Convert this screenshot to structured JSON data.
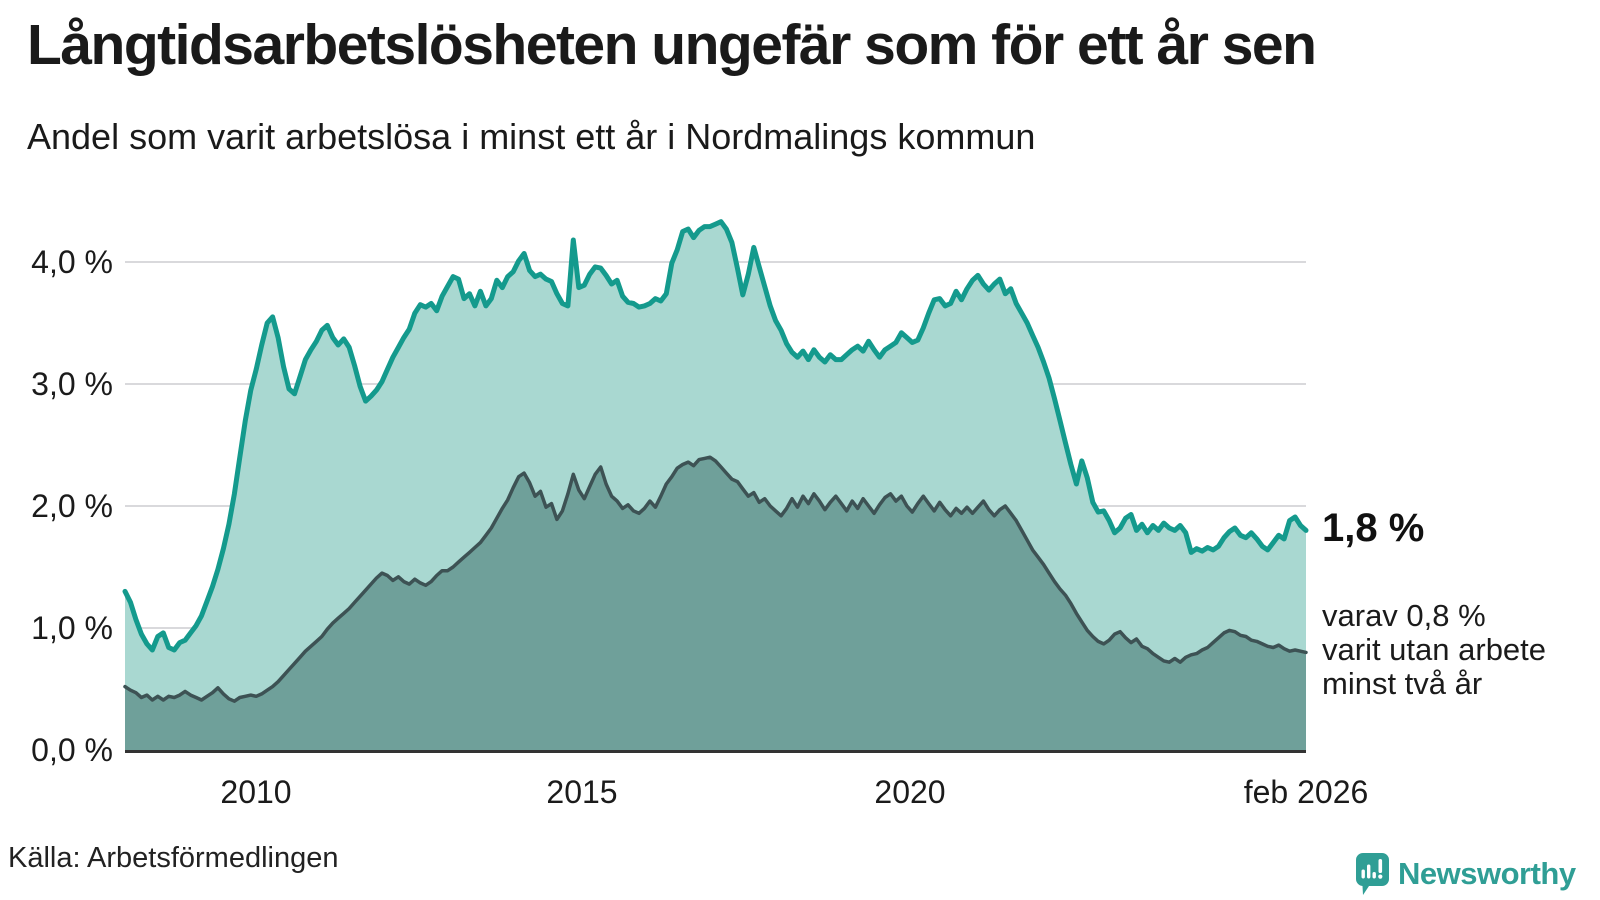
{
  "header": {
    "title": "Långtidsarbetslösheten ungefär som för ett år sen",
    "subtitle": "Andel som varit arbetslösa i minst ett år i Nordmalings kommun"
  },
  "chart_data": {
    "type": "area",
    "title": "Långtidsarbetslösheten ungefär som för ett år sen",
    "subtitle": "Andel som varit arbetslösa i minst ett år i Nordmalings kommun",
    "unit": "%",
    "freq": "monthly",
    "x_start_decimal_year": 2008.083,
    "x_end_decimal_year": 2026.083,
    "ylim": [
      0,
      4.35
    ],
    "grid": "horizontal",
    "y_ticks": [
      {
        "label": "4,0 %",
        "value": 4.0
      },
      {
        "label": "3,0 %",
        "value": 3.0
      },
      {
        "label": "2,0 %",
        "value": 2.0
      },
      {
        "label": "1,0 %",
        "value": 1.0
      },
      {
        "label": "0,0 %",
        "value": 0.0
      }
    ],
    "x_ticks": [
      {
        "label": "2010",
        "time": 2010.0
      },
      {
        "label": "2015",
        "time": 2015.0
      },
      {
        "label": "2020",
        "time": 2020.0
      },
      {
        "label": "feb 2026",
        "time": 2026.083
      }
    ],
    "series": [
      {
        "name": "Andel arbetslösa minst ett år",
        "line_color": "#149a8d",
        "fill_color": "#a9d8d1",
        "line_width": 5,
        "values": [
          1.3,
          1.21,
          1.07,
          0.95,
          0.87,
          0.82,
          0.93,
          0.96,
          0.84,
          0.82,
          0.88,
          0.9,
          0.96,
          1.02,
          1.1,
          1.22,
          1.34,
          1.48,
          1.65,
          1.85,
          2.1,
          2.4,
          2.7,
          2.95,
          3.12,
          3.32,
          3.5,
          3.55,
          3.38,
          3.14,
          2.96,
          2.92,
          3.06,
          3.2,
          3.28,
          3.35,
          3.44,
          3.48,
          3.38,
          3.32,
          3.37,
          3.3,
          3.15,
          2.98,
          2.86,
          2.9,
          2.95,
          3.02,
          3.12,
          3.22,
          3.3,
          3.38,
          3.45,
          3.58,
          3.65,
          3.63,
          3.66,
          3.6,
          3.72,
          3.8,
          3.88,
          3.86,
          3.7,
          3.74,
          3.64,
          3.76,
          3.64,
          3.7,
          3.85,
          3.79,
          3.88,
          3.92,
          4.01,
          4.07,
          3.93,
          3.88,
          3.9,
          3.86,
          3.84,
          3.74,
          3.66,
          3.64,
          4.18,
          3.79,
          3.81,
          3.9,
          3.96,
          3.95,
          3.89,
          3.82,
          3.85,
          3.72,
          3.67,
          3.66,
          3.63,
          3.64,
          3.66,
          3.7,
          3.68,
          3.74,
          3.99,
          4.1,
          4.25,
          4.27,
          4.2,
          4.26,
          4.29,
          4.29,
          4.31,
          4.33,
          4.27,
          4.16,
          3.95,
          3.73,
          3.9,
          4.12,
          3.96,
          3.8,
          3.64,
          3.52,
          3.44,
          3.33,
          3.26,
          3.22,
          3.27,
          3.2,
          3.28,
          3.22,
          3.18,
          3.24,
          3.2,
          3.2,
          3.24,
          3.28,
          3.31,
          3.27,
          3.35,
          3.28,
          3.22,
          3.28,
          3.31,
          3.34,
          3.42,
          3.38,
          3.34,
          3.36,
          3.46,
          3.58,
          3.69,
          3.7,
          3.64,
          3.66,
          3.76,
          3.69,
          3.78,
          3.85,
          3.89,
          3.82,
          3.77,
          3.82,
          3.86,
          3.74,
          3.78,
          3.66,
          3.58,
          3.5,
          3.4,
          3.3,
          3.18,
          3.05,
          2.88,
          2.7,
          2.52,
          2.34,
          2.18,
          2.37,
          2.23,
          2.03,
          1.95,
          1.96,
          1.88,
          1.78,
          1.82,
          1.9,
          1.93,
          1.8,
          1.85,
          1.78,
          1.84,
          1.8,
          1.86,
          1.82,
          1.8,
          1.84,
          1.78,
          1.62,
          1.65,
          1.63,
          1.66,
          1.64,
          1.67,
          1.74,
          1.79,
          1.82,
          1.76,
          1.74,
          1.78,
          1.73,
          1.67,
          1.64,
          1.7,
          1.76,
          1.73,
          1.88,
          1.91,
          1.84,
          1.8
        ]
      },
      {
        "name": "Varav utan arbete minst två år",
        "line_color": "#3d5254",
        "fill_color": "#6fa09a",
        "line_width": 3.5,
        "values": [
          0.52,
          0.49,
          0.47,
          0.43,
          0.45,
          0.41,
          0.44,
          0.41,
          0.44,
          0.43,
          0.45,
          0.48,
          0.45,
          0.43,
          0.41,
          0.44,
          0.47,
          0.51,
          0.46,
          0.42,
          0.4,
          0.43,
          0.44,
          0.45,
          0.44,
          0.46,
          0.49,
          0.52,
          0.56,
          0.61,
          0.66,
          0.71,
          0.76,
          0.81,
          0.85,
          0.89,
          0.93,
          0.99,
          1.04,
          1.08,
          1.12,
          1.16,
          1.21,
          1.26,
          1.31,
          1.36,
          1.41,
          1.45,
          1.43,
          1.39,
          1.42,
          1.38,
          1.36,
          1.4,
          1.37,
          1.35,
          1.38,
          1.43,
          1.47,
          1.47,
          1.5,
          1.54,
          1.58,
          1.62,
          1.66,
          1.7,
          1.76,
          1.82,
          1.9,
          1.98,
          2.05,
          2.15,
          2.24,
          2.27,
          2.19,
          2.08,
          2.12,
          1.99,
          2.02,
          1.89,
          1.96,
          2.1,
          2.26,
          2.13,
          2.06,
          2.16,
          2.26,
          2.32,
          2.18,
          2.08,
          2.04,
          1.98,
          2.01,
          1.96,
          1.94,
          1.98,
          2.04,
          1.99,
          2.08,
          2.18,
          2.24,
          2.31,
          2.34,
          2.36,
          2.33,
          2.38,
          2.39,
          2.4,
          2.37,
          2.32,
          2.27,
          2.22,
          2.2,
          2.14,
          2.08,
          2.11,
          2.03,
          2.06,
          2.0,
          1.96,
          1.92,
          1.98,
          2.06,
          1.99,
          2.08,
          2.02,
          2.1,
          2.04,
          1.97,
          2.03,
          2.08,
          2.02,
          1.96,
          2.04,
          1.98,
          2.06,
          2.0,
          1.94,
          2.01,
          2.07,
          2.1,
          2.04,
          2.08,
          2.0,
          1.95,
          2.02,
          2.08,
          2.02,
          1.96,
          2.03,
          1.97,
          1.92,
          1.98,
          1.94,
          1.99,
          1.94,
          1.99,
          2.04,
          1.97,
          1.92,
          1.97,
          2.0,
          1.94,
          1.88,
          1.8,
          1.72,
          1.64,
          1.58,
          1.52,
          1.45,
          1.38,
          1.32,
          1.27,
          1.2,
          1.12,
          1.05,
          0.98,
          0.93,
          0.89,
          0.87,
          0.9,
          0.95,
          0.97,
          0.92,
          0.88,
          0.91,
          0.85,
          0.83,
          0.79,
          0.76,
          0.73,
          0.72,
          0.75,
          0.72,
          0.76,
          0.78,
          0.79,
          0.82,
          0.84,
          0.88,
          0.92,
          0.96,
          0.98,
          0.97,
          0.94,
          0.93,
          0.9,
          0.89,
          0.87,
          0.85,
          0.84,
          0.86,
          0.83,
          0.81,
          0.82,
          0.81,
          0.8
        ]
      }
    ],
    "annotations": {
      "latest_total": "1,8 %",
      "secondary_lines": [
        "varav 0,8 %",
        "varit utan arbete",
        "minst två år"
      ]
    }
  },
  "colors": {
    "background": "#ffffff",
    "gridline": "#d9d9dc",
    "axis_line": "#333333",
    "text": "#1b1b1b",
    "brand_teal": "#2f9e95"
  },
  "footer": {
    "source": "Källa: Arbetsförmedlingen",
    "brand": "Newsworthy"
  }
}
